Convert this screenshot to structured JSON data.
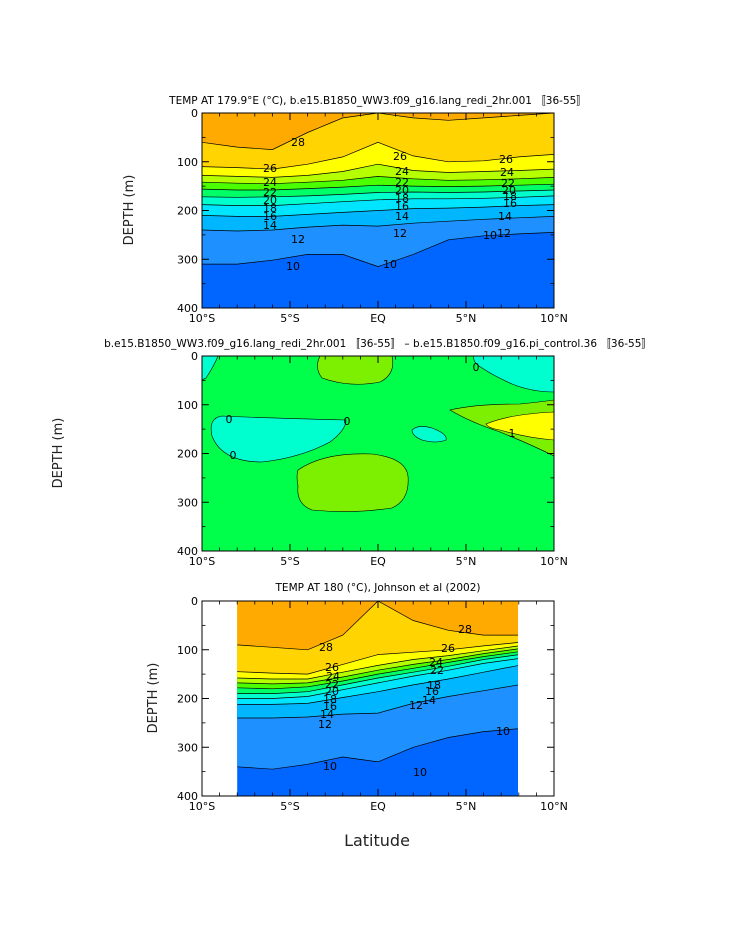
{
  "chart_data": [
    {
      "type": "contour",
      "title": "TEMP AT 179.9°E (°C), b.e15.B1850_WW3.f09_g16.lang_redi_2hr.001 〚36-55〛",
      "ylabel": "DEPTH (m)",
      "xlabel": "",
      "xlim": [
        -10,
        10
      ],
      "ylim": [
        400,
        0
      ],
      "x_ticks": [
        "10°S",
        "5°S",
        "EQ",
        "5°N",
        "10°N"
      ],
      "y_ticks": [
        "0",
        "100",
        "200",
        "300",
        "400"
      ],
      "contour_labels": [
        "28",
        "26",
        "26",
        "26",
        "24",
        "24",
        "24",
        "22",
        "22",
        "22",
        "20",
        "20",
        "20",
        "18",
        "18",
        "18",
        "16",
        "16",
        "16",
        "14",
        "14",
        "14",
        "12",
        "12",
        "12",
        "10",
        "10",
        "10"
      ],
      "field": {
        "x": [
          -10,
          -8,
          -6,
          -4,
          -2,
          0,
          2,
          4,
          6,
          8,
          10
        ],
        "y_depth_of_isotherm": {
          "28": [
            60,
            70,
            75,
            40,
            10,
            0,
            10,
            15,
            10,
            5,
            0
          ],
          "26": [
            110,
            112,
            115,
            105,
            90,
            60,
            88,
            100,
            98,
            90,
            85
          ],
          "24": [
            128,
            130,
            132,
            128,
            120,
            105,
            118,
            122,
            120,
            118,
            115
          ],
          "22": [
            142,
            144,
            145,
            142,
            138,
            130,
            135,
            138,
            137,
            135,
            132
          ],
          "20": [
            156,
            158,
            158,
            155,
            152,
            148,
            150,
            151,
            150,
            148,
            146
          ],
          "18": [
            172,
            173,
            172,
            170,
            167,
            163,
            162,
            163,
            162,
            160,
            158
          ],
          "16": [
            188,
            190,
            190,
            186,
            182,
            178,
            176,
            176,
            175,
            173,
            170
          ],
          "14": [
            210,
            212,
            212,
            208,
            204,
            200,
            196,
            195,
            193,
            190,
            188
          ],
          "12": [
            240,
            242,
            240,
            234,
            230,
            232,
            226,
            222,
            218,
            215,
            212
          ],
          "10": [
            310,
            310,
            302,
            290,
            290,
            315,
            290,
            260,
            252,
            248,
            245
          ]
        }
      }
    },
    {
      "type": "contour",
      "title": "b.e15.B1850_WW3.f09_g16.lang_redi_2hr.001 〚36-55〛 – b.e15.B1850.f09_g16.pi_control.36 〚36-55〛",
      "ylabel": "DEPTH (m)",
      "xlabel": "",
      "xlim": [
        -10,
        10
      ],
      "ylim": [
        400,
        0
      ],
      "x_ticks": [
        "10°S",
        "5°S",
        "EQ",
        "5°N",
        "10°N"
      ],
      "y_ticks": [
        "0",
        "100",
        "200",
        "300",
        "400"
      ],
      "contour_labels": [
        "0",
        "0",
        "0",
        "0",
        "1"
      ],
      "regions": [
        {
          "level": "0 to 0.5 (background)",
          "color": "#00ff4a"
        },
        {
          "level": "0.5 to 1",
          "color": "#7cf000"
        },
        {
          "level": "above 1",
          "color": "#ffff00"
        },
        {
          "level": "-0.5 to 0",
          "color": "#00ffcf"
        }
      ]
    },
    {
      "type": "contour",
      "title": "TEMP AT 180 (°C), Johnson et al (2002)",
      "ylabel": "DEPTH (m)",
      "xlabel": "Latitude",
      "xlim": [
        -10,
        10
      ],
      "ylim": [
        400,
        0
      ],
      "x_ticks": [
        "10°S",
        "5°S",
        "EQ",
        "5°N",
        "10°N"
      ],
      "y_ticks": [
        "0",
        "100",
        "200",
        "300",
        "400"
      ],
      "contour_labels": [
        "28",
        "28",
        "26",
        "26",
        "24",
        "24",
        "22",
        "22",
        "20",
        "18",
        "18",
        "16",
        "16",
        "14",
        "14",
        "12",
        "12",
        "10",
        "10",
        "10"
      ],
      "data_extent_lat": [
        -8,
        8
      ],
      "field": {
        "x": [
          -8,
          -6,
          -4,
          -2,
          0,
          2,
          4,
          6,
          8
        ],
        "y_depth_of_isotherm": {
          "28": [
            90,
            95,
            100,
            70,
            0,
            40,
            60,
            70,
            70
          ],
          "26": [
            145,
            148,
            150,
            130,
            110,
            105,
            100,
            92,
            85
          ],
          "24": [
            158,
            160,
            160,
            146,
            132,
            120,
            112,
            102,
            92
          ],
          "22": [
            168,
            170,
            168,
            156,
            142,
            130,
            120,
            108,
            98
          ],
          "20": [
            178,
            180,
            176,
            164,
            150,
            138,
            126,
            114,
            104
          ],
          "18": [
            190,
            190,
            186,
            172,
            158,
            146,
            134,
            120,
            110
          ],
          "16": [
            200,
            200,
            196,
            182,
            168,
            154,
            142,
            128,
            118
          ],
          "14": [
            212,
            212,
            210,
            198,
            186,
            172,
            160,
            146,
            132
          ],
          "12": [
            240,
            240,
            238,
            232,
            230,
            210,
            196,
            184,
            172
          ],
          "10": [
            340,
            345,
            335,
            320,
            330,
            300,
            280,
            268,
            262
          ]
        }
      }
    }
  ],
  "palette": [
    "#7300ff",
    "#0026ff",
    "#0066ff",
    "#1e90ff",
    "#00b7ff",
    "#00e5ff",
    "#00ffcc",
    "#00ff66",
    "#4cff00",
    "#b5ff00",
    "#ffff00",
    "#ffd400",
    "#ffaa00",
    "#ff7a00",
    "#ff4400",
    "#ff0000",
    "#d40000"
  ]
}
